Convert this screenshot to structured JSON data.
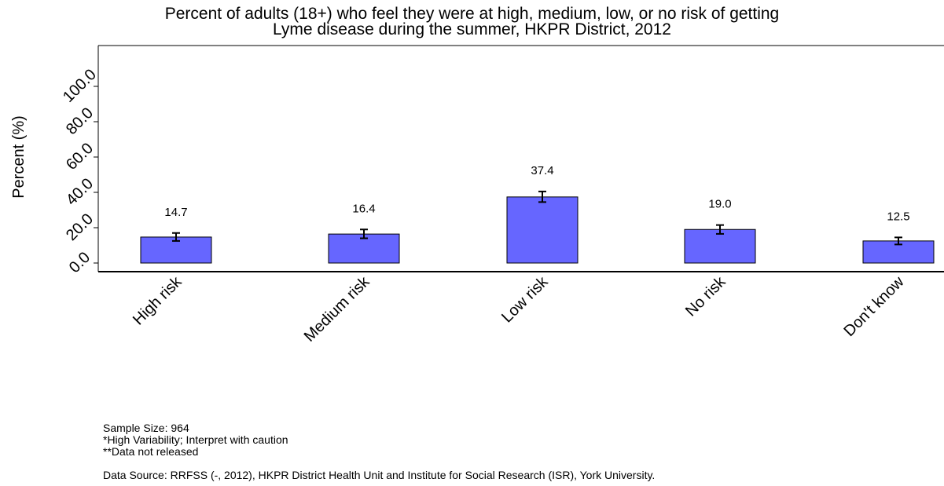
{
  "chart_data": {
    "type": "bar",
    "title_line1": "Percent of adults (18+) who feel they were at high, medium, low, or no risk of getting",
    "title_line2": "Lyme disease during the summer, HKPR District, 2012",
    "ylabel": "Percent (%)",
    "xlabel": "",
    "ylim": [
      0,
      120
    ],
    "yticks": [
      "0.0",
      "20.0",
      "40.0",
      "60.0",
      "80.0",
      "100.0"
    ],
    "categories": [
      "High risk",
      "Medium risk",
      "Low risk",
      "No risk",
      "Don't know"
    ],
    "values": [
      14.7,
      16.4,
      37.4,
      19.0,
      12.5
    ],
    "value_labels": [
      "14.7",
      "16.4",
      "37.4",
      "19.0",
      "12.5"
    ],
    "error_low": [
      12.5,
      14.0,
      34.5,
      16.5,
      10.5
    ],
    "error_high": [
      17.0,
      19.0,
      40.5,
      21.5,
      14.5
    ],
    "bar_color": "#6666ff",
    "grid": false,
    "legend": "none"
  },
  "footnotes": {
    "sample_size": "Sample Size: 964",
    "high_variability": "*High Variability; Interpret with caution",
    "not_released": "**Data not released",
    "data_source": "Data Source: RRFSS (-, 2012), HKPR District Health Unit and Institute for Social Research (ISR), York University."
  }
}
